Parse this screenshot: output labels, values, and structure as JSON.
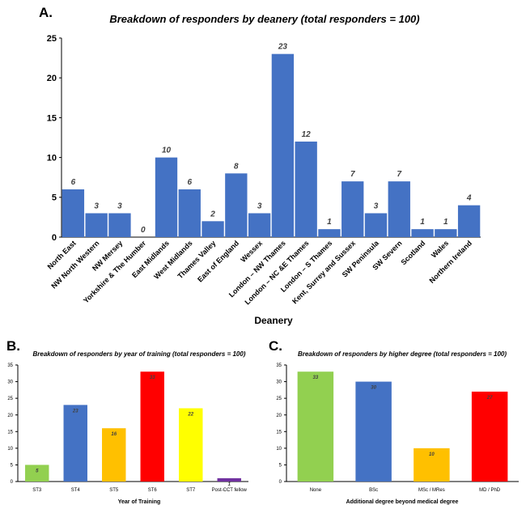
{
  "panels": {
    "a": "A.",
    "b": "B.",
    "c": "C."
  },
  "chart_data": [
    {
      "type": "bar",
      "title": "Breakdown of responders by deanery (total responders = 100)",
      "xlabel": "Deanery",
      "ylabel": "",
      "ylim": [
        0,
        25
      ],
      "yticks": [
        0,
        5,
        10,
        15,
        20,
        25
      ],
      "categories": [
        "North East",
        "NW North Western",
        "NW Mersey",
        "Yorkshire & The Humber",
        "East Midlands",
        "West Midlands",
        "Thames Valley",
        "East of England",
        "Wessex",
        "London – NW Thames",
        "London – NC &E Thames",
        "London – S Thames",
        "Kent, Surrey and Sussex",
        "SW Peninsula",
        "SW Severn",
        "Scotland",
        "Wales",
        "Northern Ireland"
      ],
      "values": [
        6,
        3,
        3,
        0,
        10,
        6,
        2,
        8,
        3,
        23,
        12,
        1,
        7,
        3,
        7,
        1,
        1,
        4
      ],
      "colors": [
        "#4472C4"
      ],
      "grid": false
    },
    {
      "type": "bar",
      "title": "Breakdown of responders by year of training (total responders = 100)",
      "xlabel": "Year of Training",
      "ylabel": "",
      "ylim": [
        0,
        35
      ],
      "yticks": [
        0,
        5,
        10,
        15,
        20,
        25,
        30,
        35
      ],
      "categories": [
        "ST3",
        "ST4",
        "ST5",
        "ST6",
        "ST7",
        "Post-CCT fellow"
      ],
      "values": [
        5,
        23,
        16,
        33,
        22,
        1
      ],
      "colors": [
        "#92D050",
        "#4472C4",
        "#FFC000",
        "#FF0000",
        "#FFFF00",
        "#7030A0"
      ],
      "grid": false
    },
    {
      "type": "bar",
      "title": "Breakdown of responders by higher degree (total responders = 100)",
      "xlabel": "Additional degree beyond medical degree",
      "ylabel": "",
      "ylim": [
        0,
        35
      ],
      "yticks": [
        0,
        5,
        10,
        15,
        20,
        25,
        30,
        35
      ],
      "categories": [
        "None",
        "BSc",
        "MSc / MRes",
        "MD / PhD"
      ],
      "values": [
        33,
        30,
        10,
        27
      ],
      "colors": [
        "#92D050",
        "#4472C4",
        "#FFC000",
        "#FF0000"
      ],
      "grid": false
    }
  ]
}
